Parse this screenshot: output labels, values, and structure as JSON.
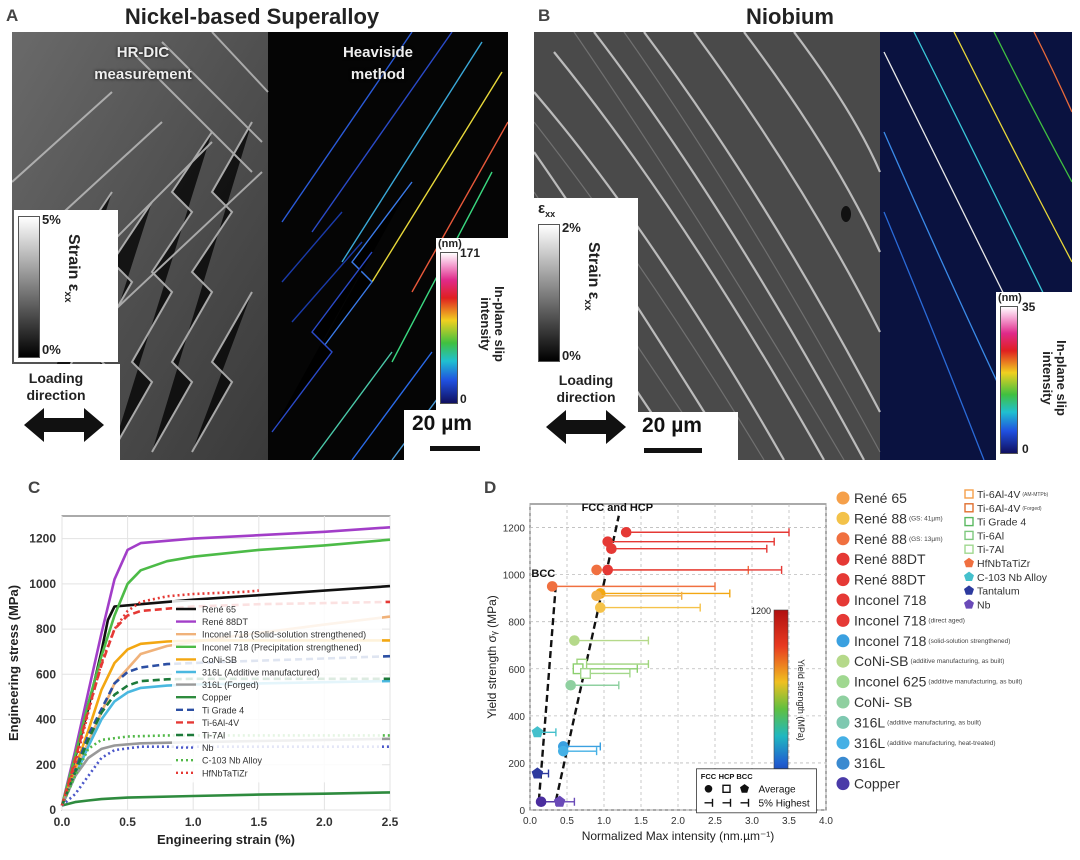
{
  "panelA": {
    "letter": "A",
    "title": "Nickel-based Superalloy",
    "left_label": "HR-DIC measurement",
    "right_label": "Heaviside method",
    "strain_bar": {
      "max": "5%",
      "min": "0%",
      "label": "Strain ε",
      "sub": "xx"
    },
    "slip_bar": {
      "unit": "(nm)",
      "max": "171",
      "min": "0",
      "label": "In-plane slip intensity"
    },
    "loading": "Loading direction",
    "scale": "20 µm"
  },
  "panelB": {
    "letter": "B",
    "title": "Niobium",
    "strain_bar": {
      "max": "2%",
      "min": "0%",
      "label": "Strain ε",
      "sub": "xx",
      "symbol": "ε",
      "symbol_sub": "xx"
    },
    "slip_bar": {
      "unit": "(nm)",
      "max": "35",
      "min": "0",
      "label": "In-plane slip intensity"
    },
    "loading": "Loading direction",
    "scale": "20 µm"
  },
  "panelC": {
    "letter": "C"
  },
  "panelD": {
    "letter": "D"
  },
  "chart_data": [
    {
      "type": "line",
      "xlabel": "Engineering strain (%)",
      "ylabel": "Engineering stress (MPa)",
      "xlim": [
        0,
        2.5
      ],
      "ylim": [
        0,
        1300
      ],
      "xticks": [
        "0.0",
        "0.5",
        "1.0",
        "1.5",
        "2.0",
        "2.5"
      ],
      "yticks": [
        "0",
        "200",
        "400",
        "600",
        "800",
        "1000",
        "1200"
      ],
      "grid": true,
      "legend_position": "center-right",
      "series": [
        {
          "name": "René 65",
          "color": "#111111",
          "dash": "solid",
          "x": [
            0,
            0.1,
            0.2,
            0.3,
            0.35,
            0.4,
            0.6,
            1.0,
            1.5,
            2.0,
            2.5
          ],
          "y": [
            20,
            230,
            450,
            700,
            840,
            900,
            910,
            930,
            950,
            970,
            990
          ]
        },
        {
          "name": "René 88DT",
          "color": "#a23ec8",
          "dash": "solid",
          "x": [
            0,
            0.1,
            0.2,
            0.3,
            0.4,
            0.5,
            0.6,
            1.0,
            1.5,
            2.0,
            2.5
          ],
          "y": [
            20,
            260,
            520,
            780,
            1020,
            1150,
            1180,
            1200,
            1215,
            1230,
            1250
          ]
        },
        {
          "name": "Inconel 718 (Solid-solution strengthened)",
          "color": "#f0b27a",
          "dash": "solid",
          "x": [
            0,
            0.2,
            0.4,
            0.6,
            0.8,
            1.2,
            1.6,
            2.0,
            2.5
          ],
          "y": [
            20,
            300,
            560,
            690,
            725,
            760,
            790,
            820,
            855
          ]
        },
        {
          "name": "Inconel 718 (Precipitation strengthened)",
          "color": "#4cbb47",
          "dash": "solid",
          "x": [
            0,
            0.1,
            0.2,
            0.3,
            0.4,
            0.5,
            0.6,
            0.8,
            1.0,
            1.5,
            2.0,
            2.5
          ],
          "y": [
            20,
            240,
            470,
            680,
            860,
            1000,
            1060,
            1100,
            1120,
            1150,
            1170,
            1195
          ]
        },
        {
          "name": "CoNi-SB",
          "color": "#f3a712",
          "dash": "solid",
          "x": [
            0,
            0.2,
            0.3,
            0.4,
            0.5,
            0.6,
            0.8,
            1.0,
            1.5,
            2.0,
            2.5
          ],
          "y": [
            20,
            350,
            530,
            650,
            710,
            735,
            745,
            750,
            750,
            750,
            750
          ]
        },
        {
          "name": "316L (Additive manufactured)",
          "color": "#4ab8e0",
          "dash": "solid",
          "x": [
            0,
            0.2,
            0.3,
            0.4,
            0.5,
            0.6,
            0.8,
            1.0,
            1.5,
            2.0,
            2.5
          ],
          "y": [
            20,
            280,
            400,
            480,
            520,
            540,
            550,
            555,
            560,
            565,
            570
          ]
        },
        {
          "name": "316L (Forged)",
          "color": "#999999",
          "dash": "solid",
          "x": [
            0,
            0.1,
            0.2,
            0.3,
            0.4,
            0.6,
            1.0,
            1.5,
            2.0,
            2.5
          ],
          "y": [
            20,
            150,
            230,
            270,
            285,
            295,
            300,
            305,
            310,
            315
          ]
        },
        {
          "name": "Copper",
          "color": "#2e8b3e",
          "dash": "solid",
          "x": [
            0,
            0.1,
            0.2,
            0.3,
            0.5,
            1.0,
            1.5,
            2.0,
            2.5
          ],
          "y": [
            20,
            35,
            42,
            48,
            55,
            62,
            68,
            72,
            78
          ]
        },
        {
          "name": "Ti Grade 4",
          "color": "#2c4fa3",
          "dash": "dash",
          "x": [
            0,
            0.2,
            0.4,
            0.5,
            0.6,
            0.8,
            1.0,
            1.5,
            2.0,
            2.5
          ],
          "y": [
            20,
            330,
            560,
            610,
            630,
            645,
            650,
            660,
            670,
            680
          ]
        },
        {
          "name": "Ti-6Al-4V",
          "color": "#e53935",
          "dash": "dash",
          "x": [
            0,
            0.1,
            0.2,
            0.3,
            0.4,
            0.5,
            0.6,
            0.8,
            1.0,
            1.5,
            2.0,
            2.5
          ],
          "y": [
            20,
            220,
            440,
            640,
            800,
            860,
            880,
            890,
            900,
            910,
            915,
            920
          ]
        },
        {
          "name": "Ti-7Al",
          "color": "#1d7a3a",
          "dash": "dash",
          "x": [
            0,
            0.2,
            0.3,
            0.4,
            0.5,
            0.6,
            0.8,
            1.0,
            1.5,
            2.0,
            2.5
          ],
          "y": [
            20,
            310,
            430,
            510,
            550,
            570,
            578,
            580,
            580,
            580,
            580
          ]
        },
        {
          "name": "Nb",
          "color": "#4a56c9",
          "dash": "dot",
          "x": [
            0,
            0.1,
            0.2,
            0.3,
            0.4,
            0.6,
            1.0,
            1.5,
            2.0,
            2.5
          ],
          "y": [
            20,
            70,
            150,
            230,
            265,
            280,
            280,
            280,
            280,
            280
          ]
        },
        {
          "name": "C-103 Nb Alloy",
          "color": "#52b848",
          "dash": "dot",
          "x": [
            0,
            0.1,
            0.2,
            0.3,
            0.5,
            0.8,
            1.0,
            1.5,
            2.0,
            2.5
          ],
          "y": [
            20,
            150,
            270,
            310,
            325,
            330,
            330,
            330,
            330,
            330
          ]
        },
        {
          "name": "HfNbTaTiZr",
          "color": "#e53935",
          "dash": "dot",
          "x": [
            0,
            0.1,
            0.2,
            0.3,
            0.4,
            0.5,
            0.6,
            0.8,
            1.0,
            1.2,
            1.4,
            1.5
          ],
          "y": [
            20,
            200,
            430,
            650,
            800,
            880,
            920,
            945,
            955,
            960,
            965,
            970
          ]
        }
      ]
    },
    {
      "type": "scatter",
      "xlabel": "Normalized Max intensity (nm.µm⁻¹)",
      "ylabel": "Yield strength σᵧ (MPa)",
      "xlim": [
        0,
        4.0
      ],
      "ylim": [
        0,
        1300
      ],
      "xticks": [
        "0.0",
        "0.5",
        "1.0",
        "1.5",
        "2.0",
        "2.5",
        "3.0",
        "3.5",
        "4.0"
      ],
      "yticks": [
        "0",
        "200",
        "400",
        "600",
        "800",
        "1000",
        "1200"
      ],
      "grid": true,
      "annotations": [
        "FCC and HCP",
        "BCC"
      ],
      "colorbar": {
        "label": "Yield strength (MPa)",
        "min": "0",
        "max": "1200"
      },
      "symbol_key": {
        "headers": [
          "FCC",
          "HCP",
          "BCC"
        ],
        "rows": [
          "Average",
          "5% Highest"
        ]
      },
      "points": [
        {
          "x": 1.3,
          "y": 1180,
          "x_high": 3.5,
          "color": "#e53935",
          "marker": "circle"
        },
        {
          "x": 1.05,
          "y": 1140,
          "x_high": 3.3,
          "color": "#e53935",
          "marker": "circle"
        },
        {
          "x": 1.1,
          "y": 1110,
          "x_high": 3.2,
          "color": "#e53935",
          "marker": "circle"
        },
        {
          "x": 0.9,
          "y": 1020,
          "x_high": 2.95,
          "color": "#f07040",
          "marker": "circle"
        },
        {
          "x": 1.05,
          "y": 1020,
          "x_high": 3.4,
          "color": "#e53935",
          "marker": "circle"
        },
        {
          "x": 0.3,
          "y": 950,
          "x_high": 2.5,
          "color": "#f07040",
          "marker": "circle"
        },
        {
          "x": 0.95,
          "y": 920,
          "x_high": 2.7,
          "color": "#f3a712",
          "marker": "circle"
        },
        {
          "x": 0.9,
          "y": 910,
          "x_high": 2.05,
          "color": "#f3b04a",
          "marker": "circle"
        },
        {
          "x": 0.95,
          "y": 860,
          "x_high": 2.3,
          "color": "#f5c24a",
          "marker": "circle"
        },
        {
          "x": 0.6,
          "y": 720,
          "x_high": 1.6,
          "color": "#b5d98a",
          "marker": "circle"
        },
        {
          "x": 0.7,
          "y": 620,
          "x_high": 1.6,
          "color": "#9fd47e",
          "marker": "square"
        },
        {
          "x": 0.65,
          "y": 600,
          "x_high": 1.45,
          "color": "#8ccf6e",
          "marker": "square"
        },
        {
          "x": 0.75,
          "y": 580,
          "x_high": 1.35,
          "color": "#a4d88c",
          "marker": "square"
        },
        {
          "x": 0.55,
          "y": 530,
          "x_high": 1.2,
          "color": "#8fd0a0",
          "marker": "circle"
        },
        {
          "x": 0.1,
          "y": 330,
          "x_high": 0.35,
          "color": "#45c0cc",
          "marker": "pentagon"
        },
        {
          "x": 0.45,
          "y": 270,
          "x_high": 0.95,
          "color": "#3aa0e0",
          "marker": "circle"
        },
        {
          "x": 0.45,
          "y": 250,
          "x_high": 0.9,
          "color": "#45b0e5",
          "marker": "circle"
        },
        {
          "x": 0.1,
          "y": 155,
          "x_high": 0.25,
          "color": "#2d3a9e",
          "marker": "pentagon"
        },
        {
          "x": 0.15,
          "y": 35,
          "x_high": 0.35,
          "color": "#4a2d9e",
          "marker": "circle"
        },
        {
          "x": 0.4,
          "y": 35,
          "x_high": 0.6,
          "color": "#6a4ab8",
          "marker": "pentagon"
        }
      ],
      "trend_lines": [
        {
          "name": "FCC and HCP",
          "x": [
            0.35,
            1.2
          ],
          "y": [
            40,
            1250
          ]
        },
        {
          "name": "BCC",
          "x": [
            0.12,
            0.35
          ],
          "y": [
            40,
            960
          ]
        }
      ],
      "legend_left": [
        {
          "label": "René 65",
          "note": "",
          "color": "#f5a04a",
          "marker": "circle"
        },
        {
          "label": "René 88",
          "note": "(GS: 41µm)",
          "color": "#f3c24a",
          "marker": "circle"
        },
        {
          "label": "René 88",
          "note": "(GS: 13µm)",
          "color": "#f07040",
          "marker": "circle"
        },
        {
          "label": "René 88DT",
          "note": "",
          "color": "#e53935",
          "marker": "circle"
        },
        {
          "label": "René 88DT",
          "note": "",
          "color": "#e53935",
          "marker": "circle"
        },
        {
          "label": "Inconel 718",
          "note": "",
          "color": "#e53935",
          "marker": "circle"
        },
        {
          "label": "Inconel 718",
          "note": "(direct aged)",
          "color": "#e53935",
          "marker": "circle"
        },
        {
          "label": "Inconel 718",
          "note": "(solid-solution strengthened)",
          "color": "#3aa0e0",
          "marker": "circle"
        },
        {
          "label": "CoNi-SB",
          "note": "(additive manufacturing, as built)",
          "color": "#b5d98a",
          "marker": "circle"
        },
        {
          "label": "Inconel 625",
          "note": "(additive manufacturing, as built)",
          "color": "#a0d890",
          "marker": "circle"
        },
        {
          "label": "CoNi- SB",
          "note": "",
          "color": "#8fd0a0",
          "marker": "circle"
        },
        {
          "label": "316L",
          "note": "(additive manufacturing, as built)",
          "color": "#7ec8b0",
          "marker": "circle"
        },
        {
          "label": "316L",
          "note": "(additive manufacturing, heat-treated)",
          "color": "#45b0e5",
          "marker": "circle"
        },
        {
          "label": "316L",
          "note": "",
          "color": "#3a8ad0",
          "marker": "circle"
        },
        {
          "label": "Copper",
          "note": "",
          "color": "#4a3aa8",
          "marker": "circle"
        }
      ],
      "legend_right": [
        {
          "label": "Ti-6Al-4V",
          "note": "(AM-MTPb)",
          "color": "#f5a04a",
          "marker": "square"
        },
        {
          "label": "Ti-6Al-4V",
          "note": "(Forged)",
          "color": "#e07030",
          "marker": "square"
        },
        {
          "label": "Ti Grade 4",
          "note": "",
          "color": "#5ab860",
          "marker": "square"
        },
        {
          "label": "Ti-6Al",
          "note": "",
          "color": "#7ec87e",
          "marker": "square"
        },
        {
          "label": "Ti-7Al",
          "note": "",
          "color": "#a0d890",
          "marker": "square"
        },
        {
          "label": "HfNbTaTiZr",
          "note": "",
          "color": "#f07040",
          "marker": "pentagon"
        },
        {
          "label": "C-103 Nb Alloy",
          "note": "",
          "color": "#45c0cc",
          "marker": "pentagon"
        },
        {
          "label": "Tantalum",
          "note": "",
          "color": "#2d3a9e",
          "marker": "pentagon"
        },
        {
          "label": "Nb",
          "note": "",
          "color": "#6a4ab8",
          "marker": "pentagon"
        }
      ]
    }
  ]
}
